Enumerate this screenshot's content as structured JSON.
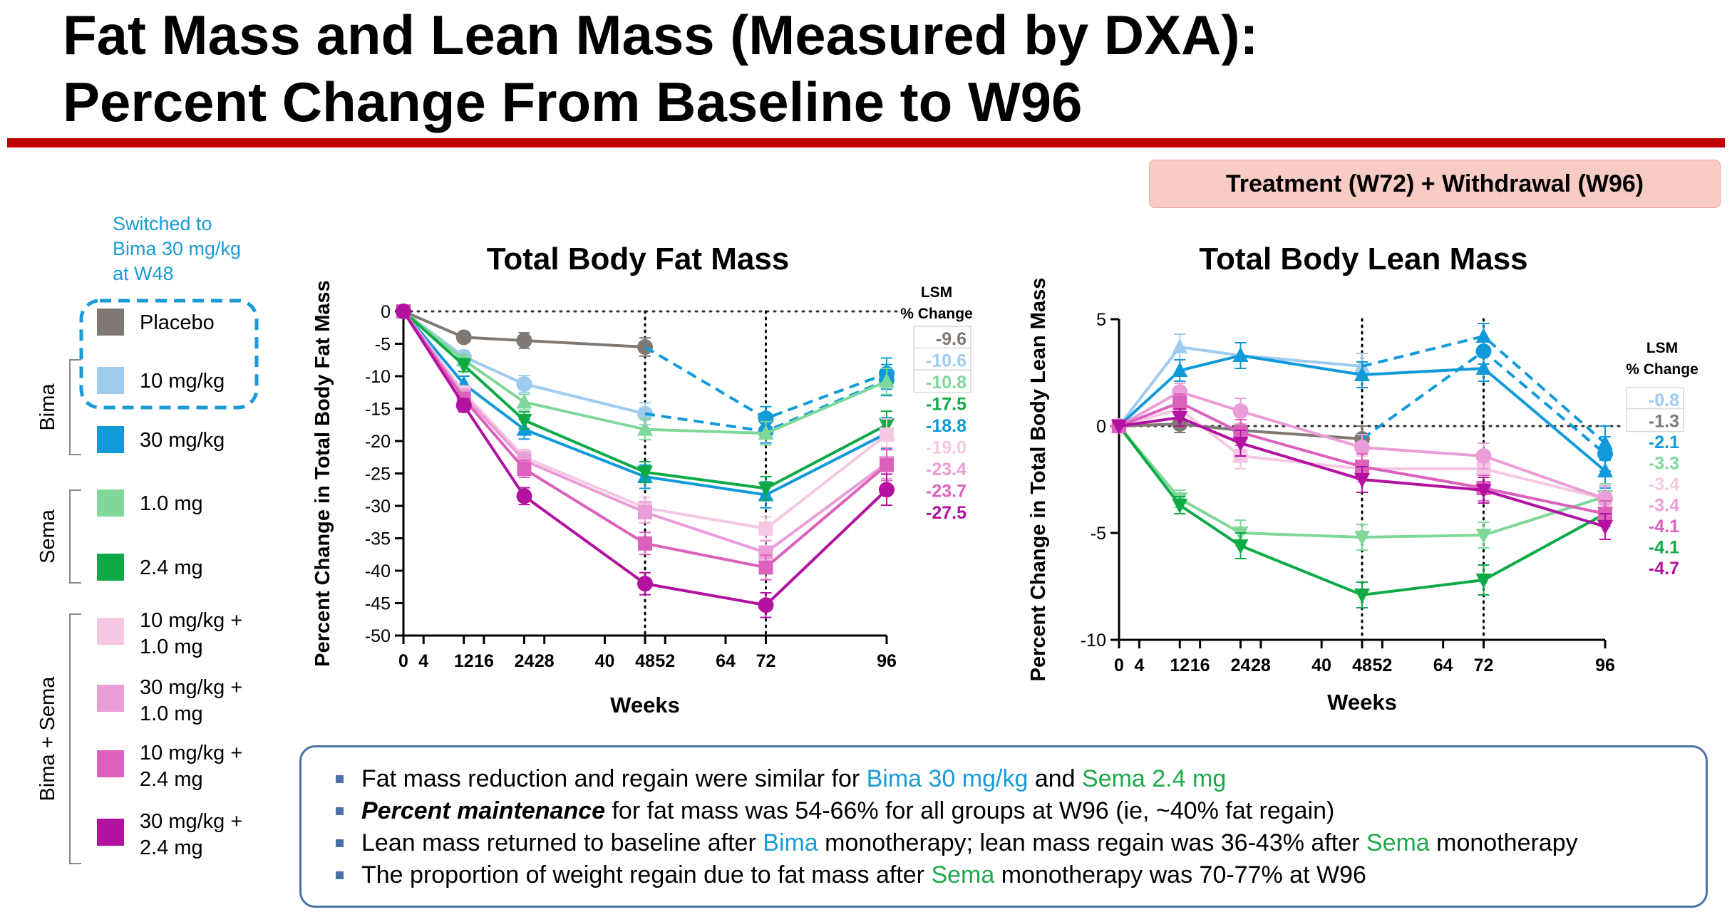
{
  "page": {
    "title_line1": "Fat Mass and Lean Mass (Measured by DXA):",
    "title_line2": "Percent Change From Baseline to W96",
    "phase_label": "Treatment (W72) + Withdrawal (W96)"
  },
  "legend": {
    "switched_note": [
      "Switched to",
      "Bima 30 mg/kg",
      "at W48"
    ],
    "group_labels": {
      "bima": "Bima",
      "sema": "Sema",
      "combo": "Bima + Sema"
    },
    "items": [
      {
        "key": "placebo",
        "label": [
          "Placebo"
        ],
        "color": "#7f7873"
      },
      {
        "key": "bima10",
        "label": [
          "10 mg/kg"
        ],
        "color": "#9ecbee"
      },
      {
        "key": "bima30",
        "label": [
          "30 mg/kg"
        ],
        "color": "#119ad9"
      },
      {
        "key": "sema1",
        "label": [
          "1.0 mg"
        ],
        "color": "#7fd79a"
      },
      {
        "key": "sema24",
        "label": [
          "2.4 mg"
        ],
        "color": "#0eaa46"
      },
      {
        "key": "c10_1",
        "label": [
          "10 mg/kg +",
          "1.0 mg"
        ],
        "color": "#f6c7e3"
      },
      {
        "key": "c30_1",
        "label": [
          "30 mg/kg +",
          "1.0 mg"
        ],
        "color": "#ea9dd6"
      },
      {
        "key": "c10_24",
        "label": [
          "10 mg/kg +",
          "2.4 mg"
        ],
        "color": "#db61bc"
      },
      {
        "key": "c30_24",
        "label": [
          "30 mg/kg +",
          "2.4 mg"
        ],
        "color": "#b3119f"
      }
    ]
  },
  "chart_data": [
    {
      "type": "line",
      "title": "Total Body Fat Mass",
      "xlabel": "Weeks",
      "ylabel": "Percent Change in Total Body Fat Mass",
      "ylim": [
        -50,
        0
      ],
      "xlim": [
        0,
        96
      ],
      "x_ticks": [
        "0",
        "4",
        "12",
        "16",
        "24",
        "28",
        "40",
        "48",
        "52",
        "64",
        "72",
        "96"
      ],
      "y_ticks": [
        "0",
        "-5",
        "-10",
        "-15",
        "-20",
        "-25",
        "-30",
        "-35",
        "-40",
        "-45",
        "-50"
      ],
      "vertical_reference_lines_at_weeks": [
        48,
        72
      ],
      "baseline_dotted_y": 0,
      "lsm_header": [
        "LSM",
        "% Change"
      ],
      "series": [
        {
          "name": "Placebo",
          "color": "#7f7873",
          "marker": "circle",
          "x": [
            0,
            12,
            24,
            48
          ],
          "y": [
            0,
            -4,
            -4.5,
            -5.5
          ],
          "err": [
            0,
            0.6,
            1.2,
            1.4
          ]
        },
        {
          "name": "Bima 10 mg/kg",
          "color": "#9ecbee",
          "marker": "circle",
          "x": [
            0,
            12,
            24,
            48
          ],
          "y": [
            0,
            -7,
            -11.2,
            -15.8
          ],
          "err": [
            0,
            0.7,
            1.3,
            1.7
          ]
        },
        {
          "name": "Bima 30 mg/kg",
          "color": "#119ad9",
          "marker": "triangle",
          "x": [
            0,
            12,
            24,
            48,
            72,
            96
          ],
          "y": [
            0,
            -11.2,
            -18.2,
            -25.5,
            -28.3,
            -18.8
          ],
          "err": [
            0,
            1.2,
            1.5,
            1.8,
            2.0,
            2.4
          ]
        },
        {
          "name": "Switched to Bima 30 mg/kg at W48",
          "color": "#119ad9",
          "dashed": true,
          "marker": "circle",
          "x": [
            48,
            72,
            96
          ],
          "y": [
            -5.5,
            -16.5,
            -9.6
          ],
          "err": [
            0,
            1.8,
            2.4
          ]
        },
        {
          "name": "Switched to Bima 30 mg/kg at W48",
          "color": "#119ad9",
          "dashed": true,
          "marker": "circle",
          "x": [
            48,
            72,
            96
          ],
          "y": [
            -15.8,
            -18.5,
            -10.6
          ],
          "err": [
            0,
            1.8,
            2.4
          ]
        },
        {
          "name": "Sema 1.0 mg",
          "color": "#7fd79a",
          "marker": "triangle",
          "x": [
            0,
            12,
            24,
            48,
            72,
            96
          ],
          "y": [
            0,
            -7.5,
            -14,
            -18.2,
            -18.8,
            -10.8
          ],
          "err": [
            0,
            0.8,
            1.2,
            1.6,
            1.8,
            2.0
          ]
        },
        {
          "name": "Sema 2.4 mg",
          "color": "#0eaa46",
          "marker": "tri-down",
          "x": [
            0,
            12,
            24,
            48,
            72,
            96
          ],
          "y": [
            0,
            -8.3,
            -16.8,
            -24.8,
            -27.3,
            -17.5
          ],
          "err": [
            0,
            1.0,
            1.3,
            1.6,
            1.8,
            2.1
          ]
        },
        {
          "name": "Bima 10 mg/kg + Sema 1.0 mg",
          "color": "#f6c7e3",
          "marker": "square",
          "x": [
            0,
            12,
            24,
            48,
            72,
            96
          ],
          "y": [
            0,
            -12.5,
            -22.5,
            -30.3,
            -33.5,
            -19.0
          ],
          "err": [
            0,
            1.0,
            1.2,
            1.6,
            1.8,
            2.4
          ]
        },
        {
          "name": "Bima 30 mg/kg + Sema 1.0 mg",
          "color": "#ea9dd6",
          "marker": "square",
          "x": [
            0,
            12,
            24,
            48,
            72,
            96
          ],
          "y": [
            0,
            -13,
            -23,
            -31,
            -37.2,
            -23.4
          ],
          "err": [
            0,
            1.0,
            1.3,
            1.6,
            1.8,
            2.4
          ]
        },
        {
          "name": "Bima 10 mg/kg + Sema 2.4 mg",
          "color": "#db61bc",
          "marker": "square",
          "x": [
            0,
            12,
            24,
            48,
            72,
            96
          ],
          "y": [
            0,
            -13.5,
            -24.3,
            -35.8,
            -39.5,
            -23.7
          ],
          "err": [
            0,
            1.0,
            1.3,
            1.7,
            1.9,
            2.4
          ]
        },
        {
          "name": "Bima 30 mg/kg + Sema 2.4 mg",
          "color": "#b3119f",
          "marker": "circle",
          "x": [
            0,
            12,
            24,
            48,
            72,
            96
          ],
          "y": [
            0,
            -14.5,
            -28.5,
            -42,
            -45.3,
            -27.5
          ],
          "err": [
            0,
            1.0,
            1.3,
            1.7,
            1.9,
            2.4
          ]
        }
      ],
      "lsm_values": [
        {
          "text": "-9.6",
          "color": "#7f7873",
          "boxed": true
        },
        {
          "text": "-10.6",
          "color": "#9ecbee",
          "boxed": true
        },
        {
          "text": "-10.8",
          "color": "#7fd79a",
          "boxed": true
        },
        {
          "text": "-17.5",
          "color": "#0eaa46"
        },
        {
          "text": "-18.8",
          "color": "#119ad9"
        },
        {
          "text": "-19.0",
          "color": "#f6c7e3"
        },
        {
          "text": "-23.4",
          "color": "#ea9dd6"
        },
        {
          "text": "-23.7",
          "color": "#db61bc"
        },
        {
          "text": "-27.5",
          "color": "#b3119f"
        }
      ]
    },
    {
      "type": "line",
      "title": "Total Body Lean Mass",
      "xlabel": "Weeks",
      "ylabel": "Percent Change in Total Body Lean Mass",
      "ylim": [
        -10,
        5
      ],
      "xlim": [
        0,
        96
      ],
      "x_ticks": [
        "0",
        "4",
        "12",
        "16",
        "24",
        "28",
        "40",
        "48",
        "52",
        "64",
        "72",
        "96"
      ],
      "y_ticks": [
        "5",
        "0",
        "-5",
        "-10"
      ],
      "vertical_reference_lines_at_weeks": [
        48,
        72
      ],
      "baseline_dotted_y": 0,
      "lsm_header": [
        "LSM",
        "% Change"
      ],
      "series": [
        {
          "name": "Placebo",
          "color": "#7f7873",
          "marker": "circle",
          "x": [
            0,
            12,
            24,
            48
          ],
          "y": [
            0,
            0.1,
            -0.2,
            -0.6
          ],
          "err": [
            0,
            0.4,
            0.5,
            0.6
          ]
        },
        {
          "name": "Bima 10 mg/kg",
          "color": "#9ecbee",
          "marker": "triangle",
          "x": [
            0,
            12,
            24,
            48
          ],
          "y": [
            0,
            3.7,
            3.3,
            2.8
          ],
          "err": [
            0,
            0.6,
            0.6,
            0.6
          ]
        },
        {
          "name": "Bima 30 mg/kg",
          "color": "#119ad9",
          "marker": "triangle",
          "x": [
            0,
            12,
            24,
            48,
            72,
            96
          ],
          "y": [
            0,
            2.6,
            3.3,
            2.4,
            2.7,
            -2.1
          ],
          "err": [
            0,
            0.5,
            0.6,
            0.6,
            0.6,
            0.8
          ]
        },
        {
          "name": "Switched to Bima 30 mg/kg at W48",
          "color": "#119ad9",
          "dashed": true,
          "marker": "circle",
          "x": [
            48,
            72,
            96
          ],
          "y": [
            -0.6,
            3.5,
            -1.3
          ],
          "err": [
            0,
            0.6,
            0.8
          ]
        },
        {
          "name": "Switched to Bima 30 mg/kg at W48",
          "color": "#119ad9",
          "dashed": true,
          "marker": "triangle",
          "x": [
            48,
            72,
            96
          ],
          "y": [
            2.8,
            4.2,
            -0.8
          ],
          "err": [
            0,
            0.6,
            0.8
          ]
        },
        {
          "name": "Sema 1.0 mg",
          "color": "#7fd79a",
          "marker": "tri-down",
          "x": [
            0,
            12,
            24,
            48,
            72,
            96
          ],
          "y": [
            0,
            -3.4,
            -5.0,
            -5.2,
            -5.1,
            -3.3
          ],
          "err": [
            0,
            0.4,
            0.6,
            0.6,
            0.6,
            0.6
          ]
        },
        {
          "name": "Sema 2.4 mg",
          "color": "#0eaa46",
          "marker": "tri-down",
          "x": [
            0,
            12,
            24,
            48,
            72,
            96
          ],
          "y": [
            0,
            -3.7,
            -5.6,
            -7.9,
            -7.2,
            -4.1
          ],
          "err": [
            0,
            0.4,
            0.6,
            0.6,
            0.7,
            0.6
          ]
        },
        {
          "name": "Bima 10 mg/kg + Sema 1.0 mg",
          "color": "#f6c7e3",
          "marker": "square",
          "x": [
            0,
            12,
            24,
            48,
            72,
            96
          ],
          "y": [
            0,
            0.8,
            -1.4,
            -2.0,
            -2.0,
            -3.4
          ],
          "err": [
            0,
            0.4,
            0.6,
            0.6,
            0.6,
            0.6
          ]
        },
        {
          "name": "Bima 30 mg/kg + Sema 1.0 mg",
          "color": "#ea9dd6",
          "marker": "circle",
          "x": [
            0,
            12,
            24,
            48,
            72,
            96
          ],
          "y": [
            0,
            1.6,
            0.7,
            -1.0,
            -1.4,
            -3.4
          ],
          "err": [
            0,
            0.4,
            0.6,
            0.6,
            0.6,
            0.6
          ]
        },
        {
          "name": "Bima 10 mg/kg + Sema 2.4 mg",
          "color": "#db61bc",
          "marker": "square",
          "x": [
            0,
            12,
            24,
            48,
            72,
            96
          ],
          "y": [
            0,
            1.1,
            -0.3,
            -1.9,
            -2.9,
            -4.1
          ],
          "err": [
            0,
            0.4,
            0.6,
            0.6,
            0.6,
            0.6
          ]
        },
        {
          "name": "Bima 30 mg/kg + Sema 2.4 mg",
          "color": "#b3119f",
          "marker": "tri-down",
          "x": [
            0,
            12,
            24,
            48,
            72,
            96
          ],
          "y": [
            0,
            0.4,
            -0.8,
            -2.5,
            -3.0,
            -4.7
          ],
          "err": [
            0,
            0.4,
            0.6,
            0.6,
            0.6,
            0.6
          ]
        }
      ],
      "lsm_values": [
        {
          "text": "-0.8",
          "color": "#9ecbee",
          "boxed": true
        },
        {
          "text": "-1.3",
          "color": "#7f7873",
          "boxed": true
        },
        {
          "text": "-2.1",
          "color": "#119ad9"
        },
        {
          "text": "-3.3",
          "color": "#7fd79a"
        },
        {
          "text": "-3.4",
          "color": "#f6c7e3"
        },
        {
          "text": "-3.4",
          "color": "#ea9dd6"
        },
        {
          "text": "-4.1",
          "color": "#db61bc"
        },
        {
          "text": "-4.1",
          "color": "#0eaa46"
        },
        {
          "text": "-4.7",
          "color": "#b3119f"
        }
      ]
    }
  ],
  "bullets": [
    [
      {
        "t": "Fat mass reduction and regain were similar for "
      },
      {
        "t": "Bima 30 mg/kg",
        "c": "bima"
      },
      {
        "t": " and "
      },
      {
        "t": "Sema 2.4 mg",
        "c": "sema"
      }
    ],
    [
      {
        "t": "Percent maintenance",
        "c": "em"
      },
      {
        "t": " for fat mass was 54-66% for all groups at W96 (ie, ~40% fat regain)"
      }
    ],
    [
      {
        "t": "Lean mass returned to baseline after "
      },
      {
        "t": "Bima",
        "c": "bima"
      },
      {
        "t": " monotherapy; lean mass regain was 36-43% after "
      },
      {
        "t": "Sema",
        "c": "sema"
      },
      {
        "t": " monotherapy"
      }
    ],
    [
      {
        "t": "The proportion of weight regain due to fat mass after "
      },
      {
        "t": "Sema",
        "c": "sema"
      },
      {
        "t": " monotherapy was 70-77% at W96"
      }
    ]
  ]
}
